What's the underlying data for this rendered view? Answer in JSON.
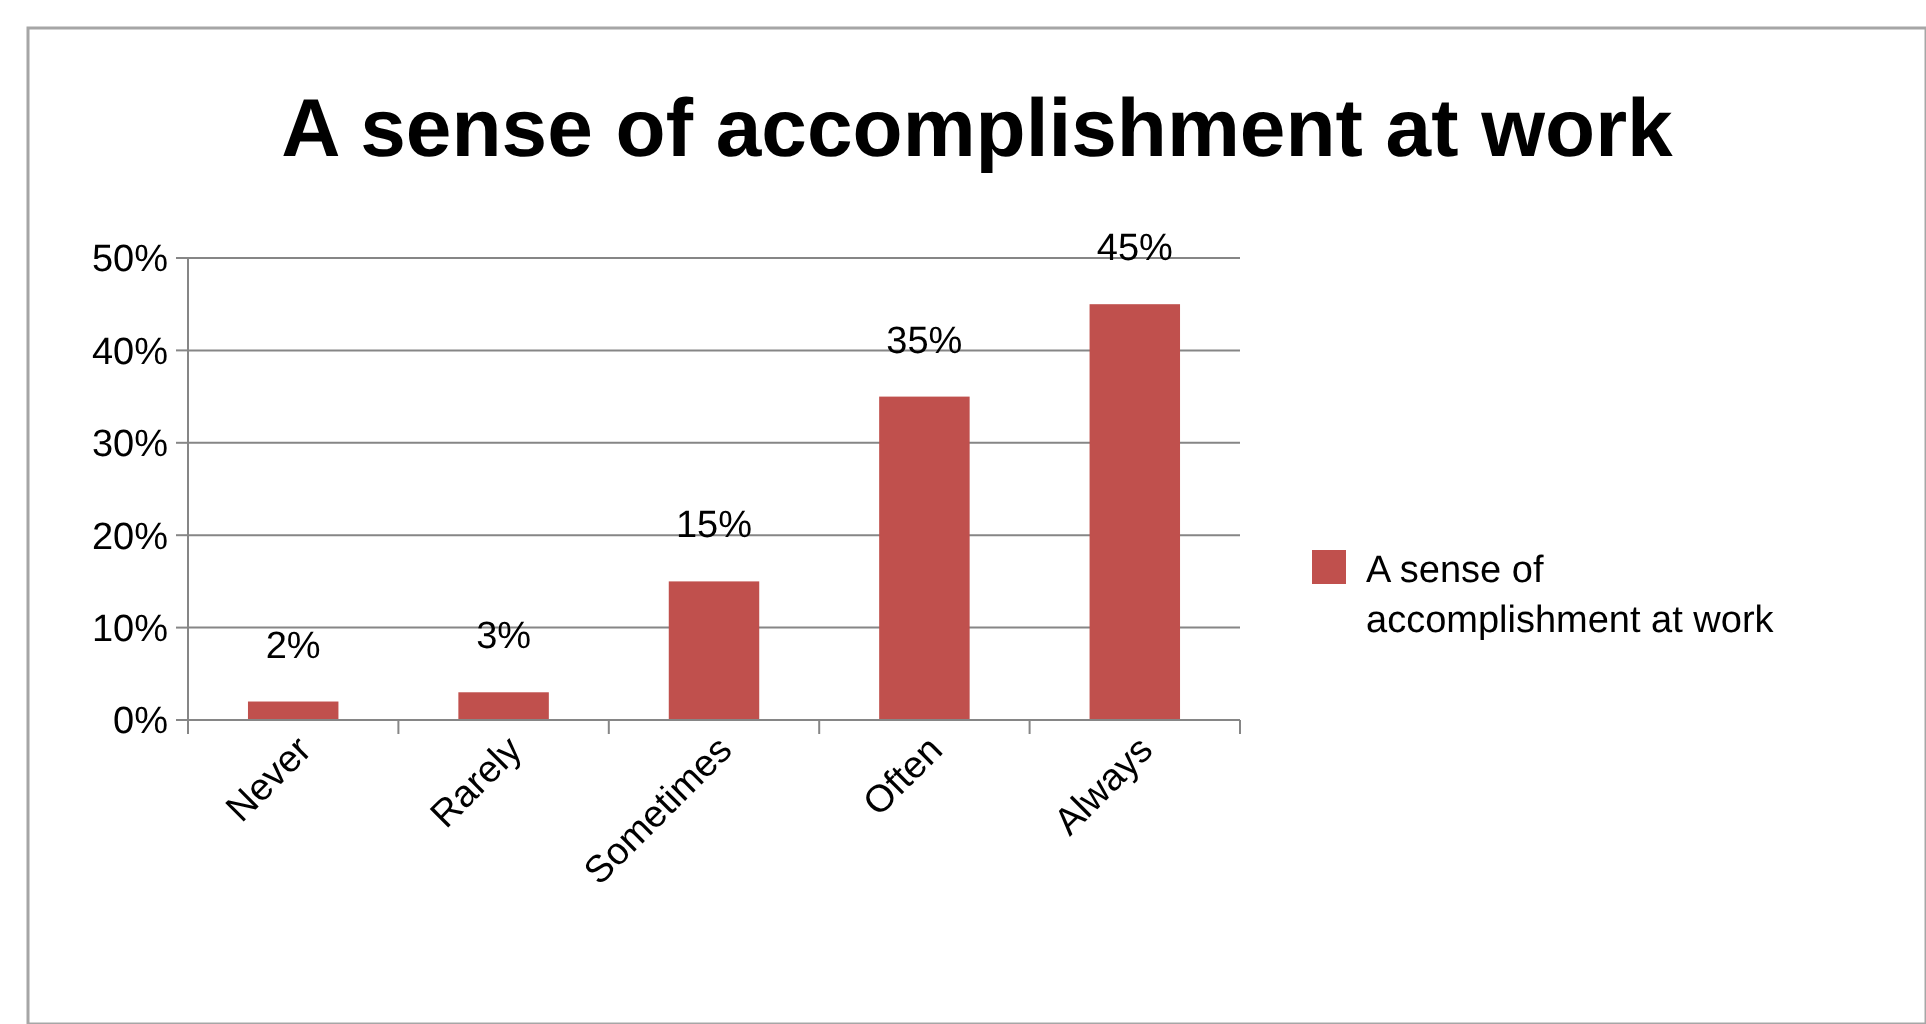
{
  "chart_data": {
    "type": "bar",
    "title": "A sense of accomplishment at work",
    "categories": [
      "Never",
      "Rarely",
      "Sometimes",
      "Often",
      "Always"
    ],
    "series": [
      {
        "name": "A sense of accomplishment at work",
        "color": "#c0504d",
        "values": [
          2,
          3,
          15,
          35,
          45
        ],
        "value_labels": [
          "2%",
          "3%",
          "15%",
          "35%",
          "45%"
        ]
      }
    ],
    "ylim": [
      0,
      50
    ],
    "yticks": [
      {
        "value": 0,
        "label": "0%"
      },
      {
        "value": 10,
        "label": "10%"
      },
      {
        "value": 20,
        "label": "20%"
      },
      {
        "value": 30,
        "label": "30%"
      },
      {
        "value": 40,
        "label": "40%"
      },
      {
        "value": 50,
        "label": "50%"
      }
    ],
    "grid": "y",
    "legend": "right"
  }
}
